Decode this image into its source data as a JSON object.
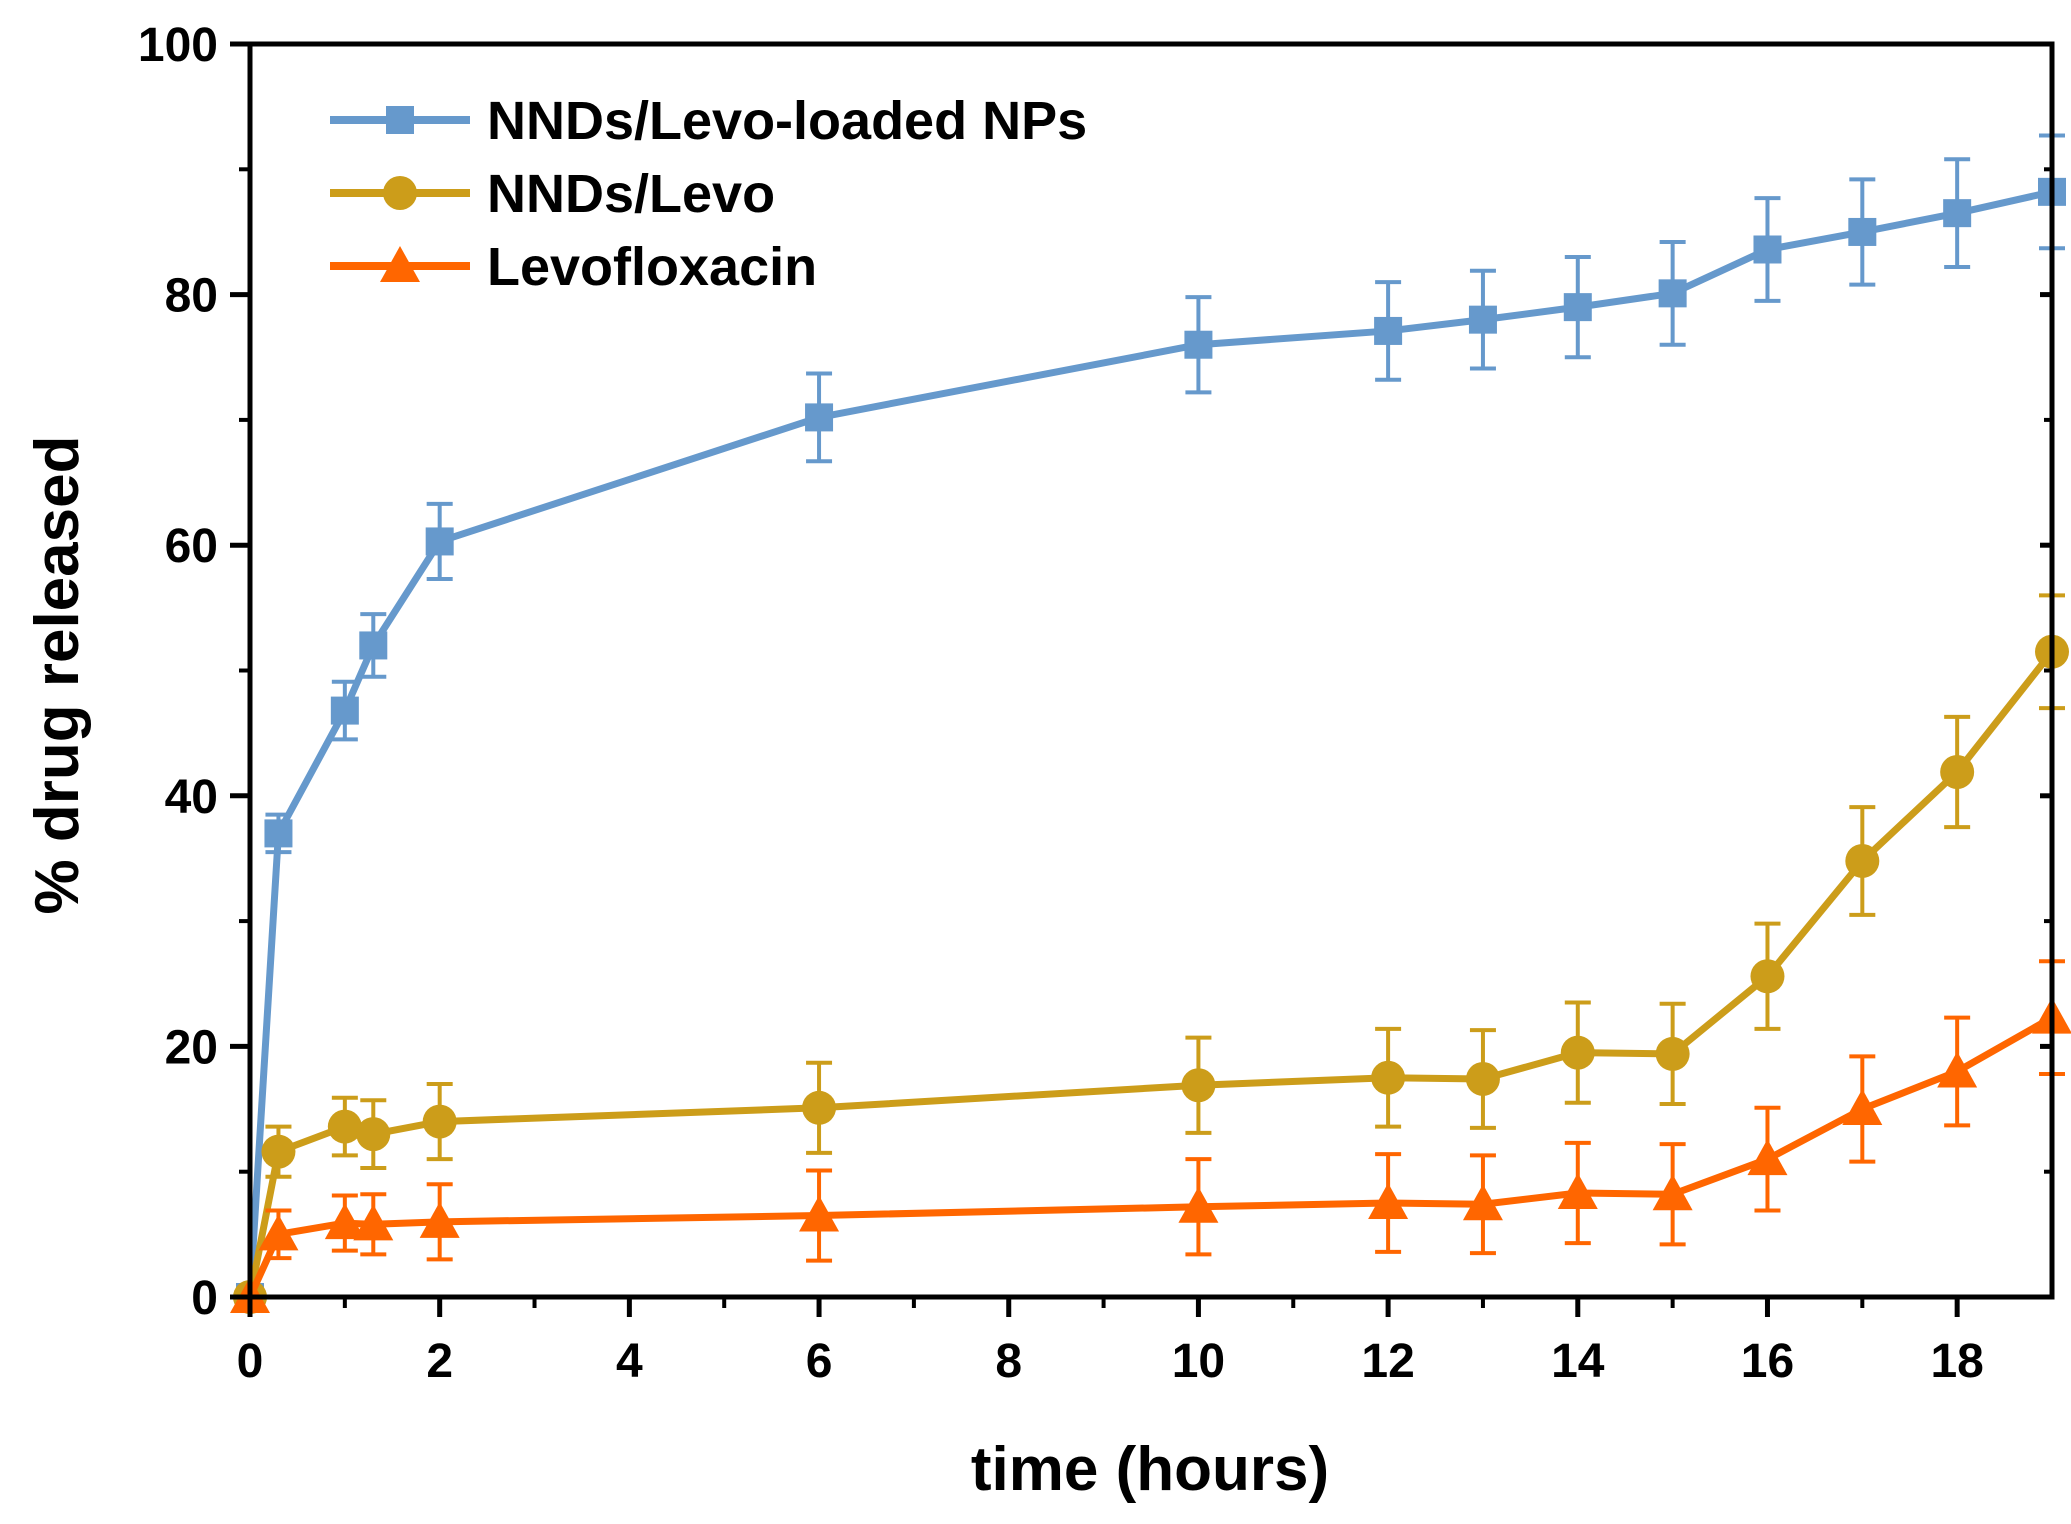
{
  "chart_data": {
    "type": "line",
    "title": "",
    "xlabel": "time (hours)",
    "ylabel": "% drug released",
    "xlim": [
      0,
      19
    ],
    "ylim": [
      0,
      100
    ],
    "xticks": [
      0,
      2,
      4,
      6,
      8,
      10,
      12,
      14,
      16,
      18
    ],
    "yticks": [
      0,
      20,
      40,
      60,
      80,
      100
    ],
    "xtick_labels": [
      "0",
      "2",
      "4",
      "6",
      "8",
      "10",
      "12",
      "14",
      "16",
      "18"
    ],
    "ytick_labels": [
      "0",
      "20",
      "40",
      "60",
      "80",
      "100"
    ],
    "grid": false,
    "legend_position": "top-left",
    "x": [
      0,
      0.3,
      1,
      1.3,
      2,
      6,
      10,
      12,
      13,
      14,
      15,
      16,
      17,
      18,
      19
    ],
    "series": [
      {
        "name": "NNDs/Levo-loaded NPs",
        "color": "#6699cc",
        "marker": "square",
        "values": [
          0,
          37,
          46.8,
          52,
          60.3,
          70.2,
          76,
          77.1,
          78,
          79,
          80.1,
          83.6,
          85,
          86.5,
          88.2
        ],
        "errors": [
          0,
          1.5,
          2.3,
          2.5,
          3,
          3.5,
          3.8,
          3.9,
          3.9,
          4,
          4.1,
          4.1,
          4.2,
          4.3,
          4.5
        ]
      },
      {
        "name": "NNDs/Levo",
        "color": "#cc9d1a",
        "marker": "circle",
        "values": [
          0,
          11.6,
          13.6,
          13,
          14,
          15.1,
          16.9,
          17.5,
          17.4,
          19.5,
          19.4,
          25.6,
          34.8,
          41.9,
          51.5
        ],
        "errors": [
          0,
          2,
          2.3,
          2.7,
          3,
          3.6,
          3.8,
          3.9,
          3.9,
          4,
          4,
          4.2,
          4.3,
          4.4,
          4.5
        ]
      },
      {
        "name": "Levofloxacin",
        "color": "#ff6600",
        "marker": "triangle",
        "values": [
          0,
          5,
          5.9,
          5.8,
          6,
          6.5,
          7.2,
          7.5,
          7.4,
          8.3,
          8.2,
          11,
          15,
          18,
          22.3
        ],
        "errors": [
          0,
          1.9,
          2.2,
          2.4,
          3,
          3.6,
          3.8,
          3.9,
          3.9,
          4,
          4,
          4.1,
          4.2,
          4.3,
          4.5
        ]
      }
    ]
  }
}
